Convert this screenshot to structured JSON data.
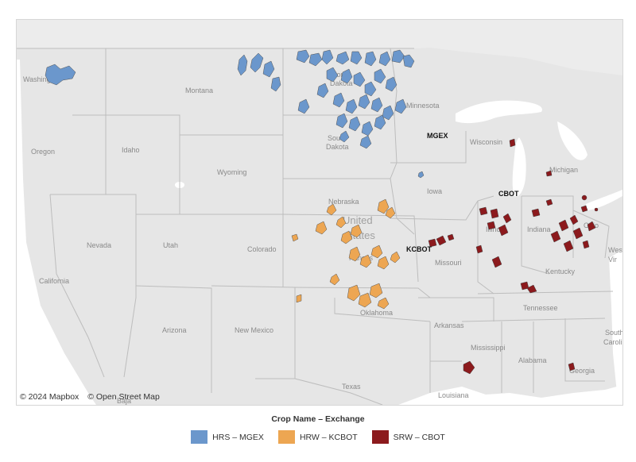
{
  "attribution": {
    "mapbox": "© 2024 Mapbox",
    "osm": "© Open Street Map"
  },
  "legend": {
    "title": "Crop Name – Exchange",
    "items": [
      {
        "label": "HRS – MGEX",
        "color": "#6b97cc"
      },
      {
        "label": "HRW – KCBOT",
        "color": "#eda652"
      },
      {
        "label": "SRW – CBOT",
        "color": "#8c1a1d"
      }
    ]
  },
  "exchange_labels": {
    "mgex": "MGEX",
    "cbot": "CBOT",
    "kcbot": "KCBOT"
  },
  "state_labels": {
    "washington": "Washington",
    "montana": "Montana",
    "north_dakota_1": "North",
    "north_dakota_2": "Dakota",
    "minnesota": "Minnesota",
    "oregon": "Oregon",
    "idaho": "Idaho",
    "wyoming": "Wyoming",
    "south_dakota_1": "South",
    "south_dakota_2": "Dakota",
    "wisconsin": "Wisconsin",
    "michigan": "Michigan",
    "nebraska": "Nebraska",
    "iowa": "Iowa",
    "united_states_1": "United",
    "united_states_2": "States",
    "nevada": "Nevada",
    "utah": "Utah",
    "colorado": "Colorado",
    "kansas": "Kansas",
    "illinois": "Illinois",
    "indiana": "Indiana",
    "ohio": "Ohio",
    "missouri": "Missouri",
    "kentucky": "Kentucky",
    "california": "California",
    "arizona": "Arizona",
    "new_mexico": "New Mexico",
    "oklahoma": "Oklahoma",
    "arkansas": "Arkansas",
    "tennessee": "Tennessee",
    "mississippi": "Mississippi",
    "alabama": "Alabama",
    "georgia": "Georgia",
    "texas": "Texas",
    "louisiana": "Louisiana",
    "west_virginia_1": "West",
    "west_virginia_2": "Vir",
    "south_carolina_1": "South",
    "south_carolina_2": "Caroli",
    "baja": "Baja"
  },
  "colors": {
    "land": "#e6e6e6",
    "water": "#ffffff",
    "border": "#bdbdbd"
  }
}
